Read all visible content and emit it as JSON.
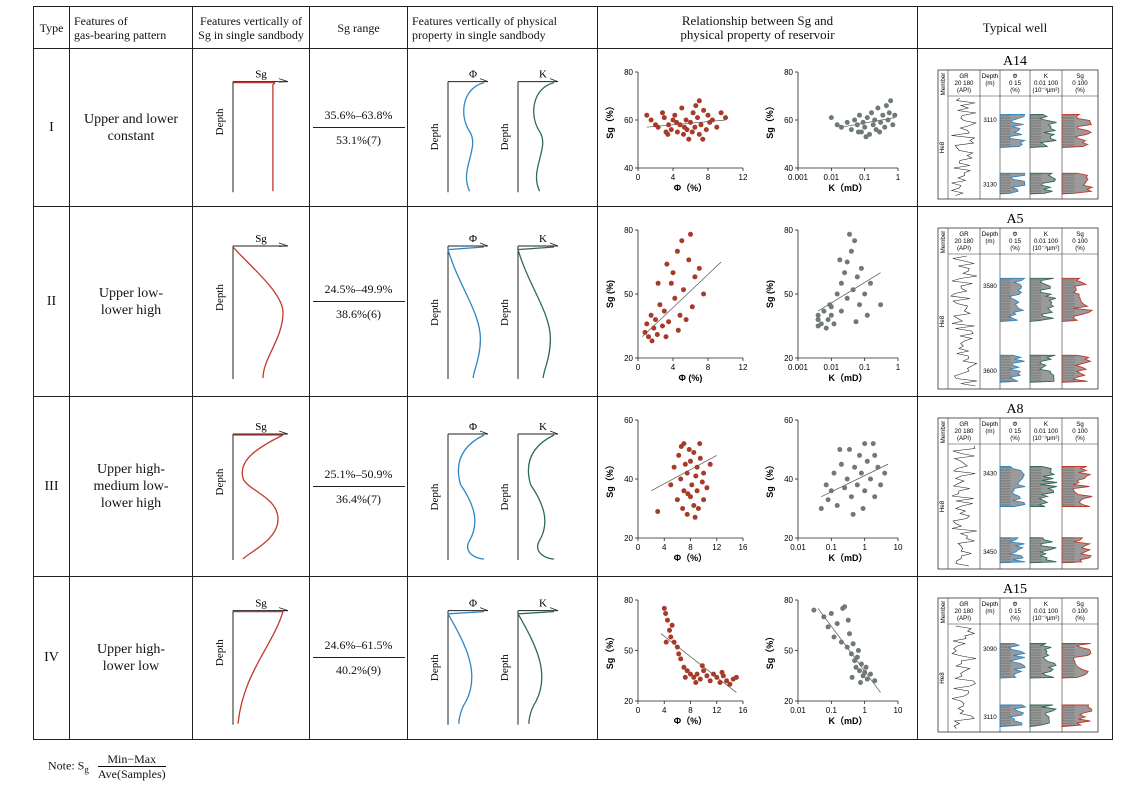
{
  "header": {
    "type": "Type",
    "pattern": "Features of\ngas-bearing pattern",
    "sg_vertical": "Features vertically of\nSg in single sandbody",
    "sg_range": "Sg  range",
    "prop_vertical": "Features vertically of physical\nproperty in single sandbody",
    "relationship": "Relationship between Sg and\nphysical property of reservoir",
    "typical_well": "Typical well"
  },
  "curve_labels": {
    "sg": "Sg",
    "depth": "Depth",
    "phi": "Φ",
    "k": "K"
  },
  "colors": {
    "sg_curve": "#c0392b",
    "phi_curve": "#2e86c1",
    "k_curve": "#2e6b57",
    "phi_points": "#a83a2a",
    "k_points": "#6e7a73"
  },
  "log_header": {
    "member": "Member",
    "gr": "GR",
    "gr_scale": "20   180",
    "gr_unit": "(API)",
    "depth": "Depth",
    "depth_unit": "(m)",
    "phi": "Φ",
    "phi_scale": "0      15",
    "phi_unit": "(%)",
    "k": "K",
    "k_scale": "0.01  100",
    "k_unit": "(10⁻³μm²)",
    "sg": "Sg",
    "sg_scale": "0     100",
    "sg_unit": "(%)",
    "member_name": "He8"
  },
  "rows": [
    {
      "type": "I",
      "pattern": "Upper and lower\nconstant",
      "range_minmax": "35.6%–63.8%",
      "range_ave": "53.1%(7)",
      "well": "A14",
      "depth_top": "3110",
      "depth_bottom": "3130",
      "phi_xlabel": "Φ（%）",
      "k_xlabel": "K（mD）",
      "ylabel": "Sg（%）",
      "phi_xticks": [
        "0",
        "4",
        "8",
        "12"
      ],
      "phi_yticks": [
        "40",
        "60",
        "80"
      ],
      "k_xticks": [
        "0.001",
        "0.01",
        "0.1",
        "1"
      ],
      "k_yticks": [
        "40",
        "60",
        "80"
      ]
    },
    {
      "type": "II",
      "pattern": "Upper low-\nlower high",
      "range_minmax": "24.5%–49.9%",
      "range_ave": "38.6%(6)",
      "well": "A5",
      "depth_top": "3580",
      "depth_bottom": "3600",
      "phi_xlabel": "Φ (%)",
      "k_xlabel": "K（mD）",
      "ylabel": "Sg (%)",
      "phi_xticks": [
        "0",
        "4",
        "8",
        "12"
      ],
      "phi_yticks": [
        "20",
        "50",
        "80"
      ],
      "k_xticks": [
        "0.001",
        "0.01",
        "0.1",
        "1"
      ],
      "k_yticks": [
        "20",
        "50",
        "80"
      ]
    },
    {
      "type": "III",
      "pattern": "Upper high-\nmedium low-\nlower high",
      "range_minmax": "25.1%–50.9%",
      "range_ave": "36.4%(7)",
      "well": "A8",
      "depth_top": "3430",
      "depth_bottom": "3450",
      "phi_xlabel": "Φ（%）",
      "k_xlabel": "K（mD）",
      "ylabel": "Sg（%）",
      "phi_xticks": [
        "0",
        "4",
        "8",
        "12",
        "16"
      ],
      "phi_yticks": [
        "20",
        "40",
        "60"
      ],
      "k_xticks": [
        "0.01",
        "0.1",
        "1",
        "10"
      ],
      "k_yticks": [
        "20",
        "40",
        "60"
      ]
    },
    {
      "type": "IV",
      "pattern": "Upper high-\nlower low",
      "range_minmax": "24.6%–61.5%",
      "range_ave": "40.2%(9)",
      "well": "A15",
      "depth_top": "3090",
      "depth_bottom": "3110",
      "phi_xlabel": "Φ（%）",
      "k_xlabel": "K（mD）",
      "ylabel": "Sg（%）",
      "phi_xticks": [
        "0",
        "4",
        "8",
        "12",
        "16"
      ],
      "phi_yticks": [
        "20",
        "50",
        "80"
      ],
      "k_xticks": [
        "0.01",
        "0.1",
        "1",
        "10"
      ],
      "k_yticks": [
        "20",
        "50",
        "80"
      ]
    }
  ],
  "chart_data": [
    {
      "type": "scatter",
      "row": "I",
      "x_label": "Φ（%）",
      "y_label": "Sg（%）",
      "xlim": [
        0,
        12
      ],
      "ylim": [
        40,
        80
      ],
      "trend": [
        [
          1,
          57
        ],
        [
          10,
          60
        ]
      ],
      "points": [
        [
          1,
          62
        ],
        [
          1.5,
          60
        ],
        [
          2,
          58
        ],
        [
          2.3,
          57
        ],
        [
          2.8,
          63
        ],
        [
          3,
          61
        ],
        [
          3.2,
          55
        ],
        [
          3.5,
          58
        ],
        [
          3.8,
          56
        ],
        [
          4,
          60
        ],
        [
          4.2,
          62
        ],
        [
          4.5,
          55
        ],
        [
          4.8,
          58
        ],
        [
          5,
          65
        ],
        [
          5.2,
          54
        ],
        [
          5.3,
          57
        ],
        [
          5.5,
          60
        ],
        [
          5.8,
          52
        ],
        [
          6,
          59
        ],
        [
          6.2,
          55
        ],
        [
          6.3,
          63
        ],
        [
          6.5,
          57
        ],
        [
          6.8,
          61
        ],
        [
          7,
          54
        ],
        [
          7,
          68
        ],
        [
          7.2,
          58
        ],
        [
          7.5,
          64
        ],
        [
          7.8,
          56
        ],
        [
          8,
          62
        ],
        [
          8.2,
          59
        ],
        [
          8.5,
          60
        ],
        [
          9,
          57
        ],
        [
          9.5,
          63
        ],
        [
          10,
          61
        ],
        [
          5.6,
          56
        ],
        [
          4.4,
          59
        ],
        [
          3.4,
          54
        ],
        [
          6.6,
          66
        ],
        [
          7.4,
          52
        ]
      ]
    },
    {
      "type": "scatter",
      "row": "I",
      "x_label": "K（mD）",
      "y_label": "Sg（%）",
      "x_scale": "log",
      "xlim": [
        0.001,
        1
      ],
      "ylim": [
        40,
        80
      ],
      "trend": [
        [
          0.02,
          57
        ],
        [
          0.8,
          61
        ]
      ],
      "points": [
        [
          0.01,
          61
        ],
        [
          0.015,
          58
        ],
        [
          0.02,
          57
        ],
        [
          0.03,
          59
        ],
        [
          0.04,
          56
        ],
        [
          0.05,
          60
        ],
        [
          0.06,
          58
        ],
        [
          0.07,
          62
        ],
        [
          0.08,
          55
        ],
        [
          0.09,
          59
        ],
        [
          0.1,
          57
        ],
        [
          0.12,
          61
        ],
        [
          0.14,
          54
        ],
        [
          0.16,
          63
        ],
        [
          0.18,
          58
        ],
        [
          0.2,
          60
        ],
        [
          0.22,
          56
        ],
        [
          0.25,
          65
        ],
        [
          0.3,
          59
        ],
        [
          0.35,
          62
        ],
        [
          0.4,
          57
        ],
        [
          0.45,
          66
        ],
        [
          0.5,
          60
        ],
        [
          0.6,
          68
        ],
        [
          0.7,
          58
        ],
        [
          0.8,
          62
        ],
        [
          0.11,
          53
        ],
        [
          0.28,
          55
        ],
        [
          0.55,
          63
        ],
        [
          0.065,
          55
        ]
      ]
    },
    {
      "type": "scatter",
      "row": "II",
      "x_label": "Φ (%)",
      "y_label": "Sg (%)",
      "xlim": [
        0,
        12
      ],
      "ylim": [
        20,
        80
      ],
      "trend": [
        [
          0.5,
          30
        ],
        [
          9.5,
          65
        ]
      ],
      "points": [
        [
          0.8,
          32
        ],
        [
          1,
          36
        ],
        [
          1.2,
          30
        ],
        [
          1.5,
          40
        ],
        [
          1.8,
          34
        ],
        [
          2,
          38
        ],
        [
          2.2,
          31
        ],
        [
          2.5,
          45
        ],
        [
          2.8,
          35
        ],
        [
          3,
          42
        ],
        [
          3.2,
          30
        ],
        [
          3.5,
          37
        ],
        [
          3.8,
          55
        ],
        [
          4,
          60
        ],
        [
          4.2,
          48
        ],
        [
          4.5,
          70
        ],
        [
          4.8,
          40
        ],
        [
          5,
          75
        ],
        [
          5.2,
          52
        ],
        [
          5.5,
          38
        ],
        [
          5.8,
          66
        ],
        [
          6,
          78
        ],
        [
          6.2,
          44
        ],
        [
          6.5,
          58
        ],
        [
          7,
          62
        ],
        [
          7.5,
          50
        ],
        [
          3.3,
          64
        ],
        [
          2.3,
          55
        ],
        [
          1.6,
          28
        ],
        [
          4.6,
          33
        ]
      ]
    },
    {
      "type": "scatter",
      "row": "II",
      "x_label": "K（mD）",
      "y_label": "Sg (%)",
      "x_scale": "log",
      "xlim": [
        0.001,
        1
      ],
      "ylim": [
        20,
        80
      ],
      "trend": [
        [
          0.004,
          42
        ],
        [
          0.3,
          60
        ]
      ],
      "points": [
        [
          0.004,
          35
        ],
        [
          0.004,
          38
        ],
        [
          0.004,
          40
        ],
        [
          0.005,
          36
        ],
        [
          0.006,
          42
        ],
        [
          0.007,
          34
        ],
        [
          0.008,
          38
        ],
        [
          0.01,
          40
        ],
        [
          0.01,
          44
        ],
        [
          0.012,
          36
        ],
        [
          0.015,
          50
        ],
        [
          0.02,
          55
        ],
        [
          0.02,
          42
        ],
        [
          0.025,
          60
        ],
        [
          0.03,
          48
        ],
        [
          0.03,
          65
        ],
        [
          0.04,
          70
        ],
        [
          0.045,
          52
        ],
        [
          0.05,
          75
        ],
        [
          0.06,
          58
        ],
        [
          0.07,
          45
        ],
        [
          0.08,
          62
        ],
        [
          0.1,
          50
        ],
        [
          0.12,
          40
        ],
        [
          0.15,
          55
        ],
        [
          0.3,
          45
        ],
        [
          0.035,
          78
        ],
        [
          0.018,
          66
        ],
        [
          0.009,
          45
        ],
        [
          0.055,
          37
        ]
      ]
    },
    {
      "type": "scatter",
      "row": "III",
      "x_label": "Φ（%）",
      "y_label": "Sg（%）",
      "xlim": [
        0,
        16
      ],
      "ylim": [
        20,
        60
      ],
      "trend": [
        [
          2,
          36
        ],
        [
          12,
          48
        ]
      ],
      "points": [
        [
          3,
          29
        ],
        [
          5,
          38
        ],
        [
          5.5,
          44
        ],
        [
          6,
          33
        ],
        [
          6.2,
          48
        ],
        [
          6.5,
          40
        ],
        [
          6.8,
          30
        ],
        [
          7,
          52
        ],
        [
          7,
          36
        ],
        [
          7.2,
          45
        ],
        [
          7.5,
          28
        ],
        [
          7.5,
          42
        ],
        [
          7.8,
          50
        ],
        [
          8,
          34
        ],
        [
          8,
          46
        ],
        [
          8.2,
          38
        ],
        [
          8.5,
          31
        ],
        [
          8.5,
          49
        ],
        [
          8.8,
          41
        ],
        [
          9,
          36
        ],
        [
          9,
          44
        ],
        [
          9.2,
          30
        ],
        [
          9.5,
          47
        ],
        [
          9.8,
          39
        ],
        [
          10,
          33
        ],
        [
          10,
          42
        ],
        [
          10.5,
          37
        ],
        [
          11,
          45
        ],
        [
          6.6,
          51
        ],
        [
          8.7,
          27
        ],
        [
          7.6,
          35
        ],
        [
          9.4,
          52
        ]
      ]
    },
    {
      "type": "scatter",
      "row": "III",
      "x_label": "K（mD）",
      "y_label": "Sg（%）",
      "x_scale": "log",
      "xlim": [
        0.01,
        10
      ],
      "ylim": [
        20,
        60
      ],
      "trend": [
        [
          0.05,
          34
        ],
        [
          5,
          45
        ]
      ],
      "points": [
        [
          0.05,
          30
        ],
        [
          0.07,
          38
        ],
        [
          0.08,
          33
        ],
        [
          0.1,
          36
        ],
        [
          0.12,
          42
        ],
        [
          0.15,
          31
        ],
        [
          0.2,
          45
        ],
        [
          0.25,
          37
        ],
        [
          0.3,
          40
        ],
        [
          0.35,
          50
        ],
        [
          0.4,
          34
        ],
        [
          0.5,
          44
        ],
        [
          0.6,
          38
        ],
        [
          0.7,
          48
        ],
        [
          0.8,
          42
        ],
        [
          1,
          52
        ],
        [
          1,
          36
        ],
        [
          1.2,
          46
        ],
        [
          1.5,
          40
        ],
        [
          2,
          48
        ],
        [
          2,
          34
        ],
        [
          2.5,
          44
        ],
        [
          3,
          38
        ],
        [
          4,
          42
        ],
        [
          0.45,
          28
        ],
        [
          0.9,
          30
        ],
        [
          1.8,
          52
        ],
        [
          0.18,
          50
        ]
      ]
    },
    {
      "type": "scatter",
      "row": "IV",
      "x_label": "Φ（%）",
      "y_label": "Sg（%）",
      "xlim": [
        0,
        16
      ],
      "ylim": [
        20,
        80
      ],
      "trend": [
        [
          3.5,
          60
        ],
        [
          15,
          25
        ]
      ],
      "points": [
        [
          4,
          75
        ],
        [
          4.2,
          72
        ],
        [
          4.5,
          68
        ],
        [
          4.8,
          62
        ],
        [
          5,
          58
        ],
        [
          5.5,
          55
        ],
        [
          6,
          52
        ],
        [
          6.2,
          48
        ],
        [
          6.5,
          45
        ],
        [
          7,
          40
        ],
        [
          7.5,
          38
        ],
        [
          8,
          36
        ],
        [
          8.5,
          34
        ],
        [
          9,
          36
        ],
        [
          9.5,
          33
        ],
        [
          10,
          38
        ],
        [
          10.5,
          35
        ],
        [
          11,
          32
        ],
        [
          11.5,
          36
        ],
        [
          12,
          34
        ],
        [
          12.5,
          31
        ],
        [
          13,
          35
        ],
        [
          13.5,
          32
        ],
        [
          14,
          30
        ],
        [
          14.5,
          33
        ],
        [
          15,
          34
        ],
        [
          4.3,
          55
        ],
        [
          5.2,
          65
        ],
        [
          7.2,
          34
        ],
        [
          9.8,
          41
        ],
        [
          8.8,
          31
        ],
        [
          12.8,
          37
        ]
      ]
    },
    {
      "type": "scatter",
      "row": "IV",
      "x_label": "K（mD）",
      "y_label": "Sg（%）",
      "x_scale": "log",
      "xlim": [
        0.01,
        10
      ],
      "ylim": [
        20,
        80
      ],
      "trend": [
        [
          0.04,
          75
        ],
        [
          3,
          25
        ]
      ],
      "points": [
        [
          0.03,
          74
        ],
        [
          0.06,
          70
        ],
        [
          0.08,
          64
        ],
        [
          0.1,
          72
        ],
        [
          0.12,
          58
        ],
        [
          0.15,
          66
        ],
        [
          0.2,
          55
        ],
        [
          0.25,
          76
        ],
        [
          0.3,
          52
        ],
        [
          0.35,
          60
        ],
        [
          0.4,
          48
        ],
        [
          0.45,
          54
        ],
        [
          0.5,
          44
        ],
        [
          0.55,
          40
        ],
        [
          0.6,
          46
        ],
        [
          0.7,
          38
        ],
        [
          0.8,
          42
        ],
        [
          0.9,
          35
        ],
        [
          1,
          37
        ],
        [
          1.2,
          33
        ],
        [
          1.5,
          36
        ],
        [
          2,
          32
        ],
        [
          0.22,
          75
        ],
        [
          0.32,
          68
        ],
        [
          0.65,
          50
        ],
        [
          1.1,
          40
        ],
        [
          0.42,
          34
        ],
        [
          0.75,
          31
        ]
      ]
    }
  ],
  "note": {
    "prefix": "Note: ",
    "sg": "S",
    "sg_sub": "g",
    "numerator": "Min−Max",
    "denominator": "Ave(Samples)"
  }
}
